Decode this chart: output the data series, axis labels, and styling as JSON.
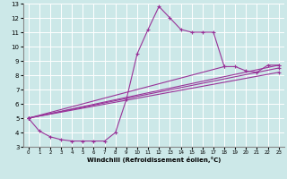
{
  "title": "",
  "xlabel": "Windchill (Refroidissement éolien,°C)",
  "ylabel": "",
  "bg_color": "#cce8e8",
  "grid_color": "#ffffff",
  "line_color": "#993399",
  "xlim": [
    -0.5,
    23.5
  ],
  "ylim": [
    3,
    13
  ],
  "xticks": [
    0,
    1,
    2,
    3,
    4,
    5,
    6,
    7,
    8,
    9,
    10,
    11,
    12,
    13,
    14,
    15,
    16,
    17,
    18,
    19,
    20,
    21,
    22,
    23
  ],
  "yticks": [
    3,
    4,
    5,
    6,
    7,
    8,
    9,
    10,
    11,
    12,
    13
  ],
  "main_x": [
    0,
    1,
    2,
    3,
    4,
    5,
    6,
    7,
    8,
    9,
    10,
    11,
    12,
    13,
    14,
    15,
    16,
    17,
    18
  ],
  "main_y": [
    5.0,
    4.1,
    3.7,
    3.5,
    3.4,
    3.4,
    3.4,
    3.4,
    4.0,
    6.3,
    9.5,
    11.2,
    12.8,
    12.0,
    11.2,
    11.0,
    11.0,
    11.0,
    8.6
  ],
  "line2_x": [
    0,
    18,
    19,
    20,
    21,
    22,
    23
  ],
  "line2_y": [
    5.0,
    8.6,
    8.6,
    8.3,
    8.2,
    8.7,
    8.7
  ],
  "line3_x": [
    0,
    23
  ],
  "line3_y": [
    5.0,
    8.7
  ],
  "line4_x": [
    0,
    23
  ],
  "line4_y": [
    5.0,
    8.5
  ],
  "line5_x": [
    0,
    23
  ],
  "line5_y": [
    5.0,
    8.2
  ]
}
